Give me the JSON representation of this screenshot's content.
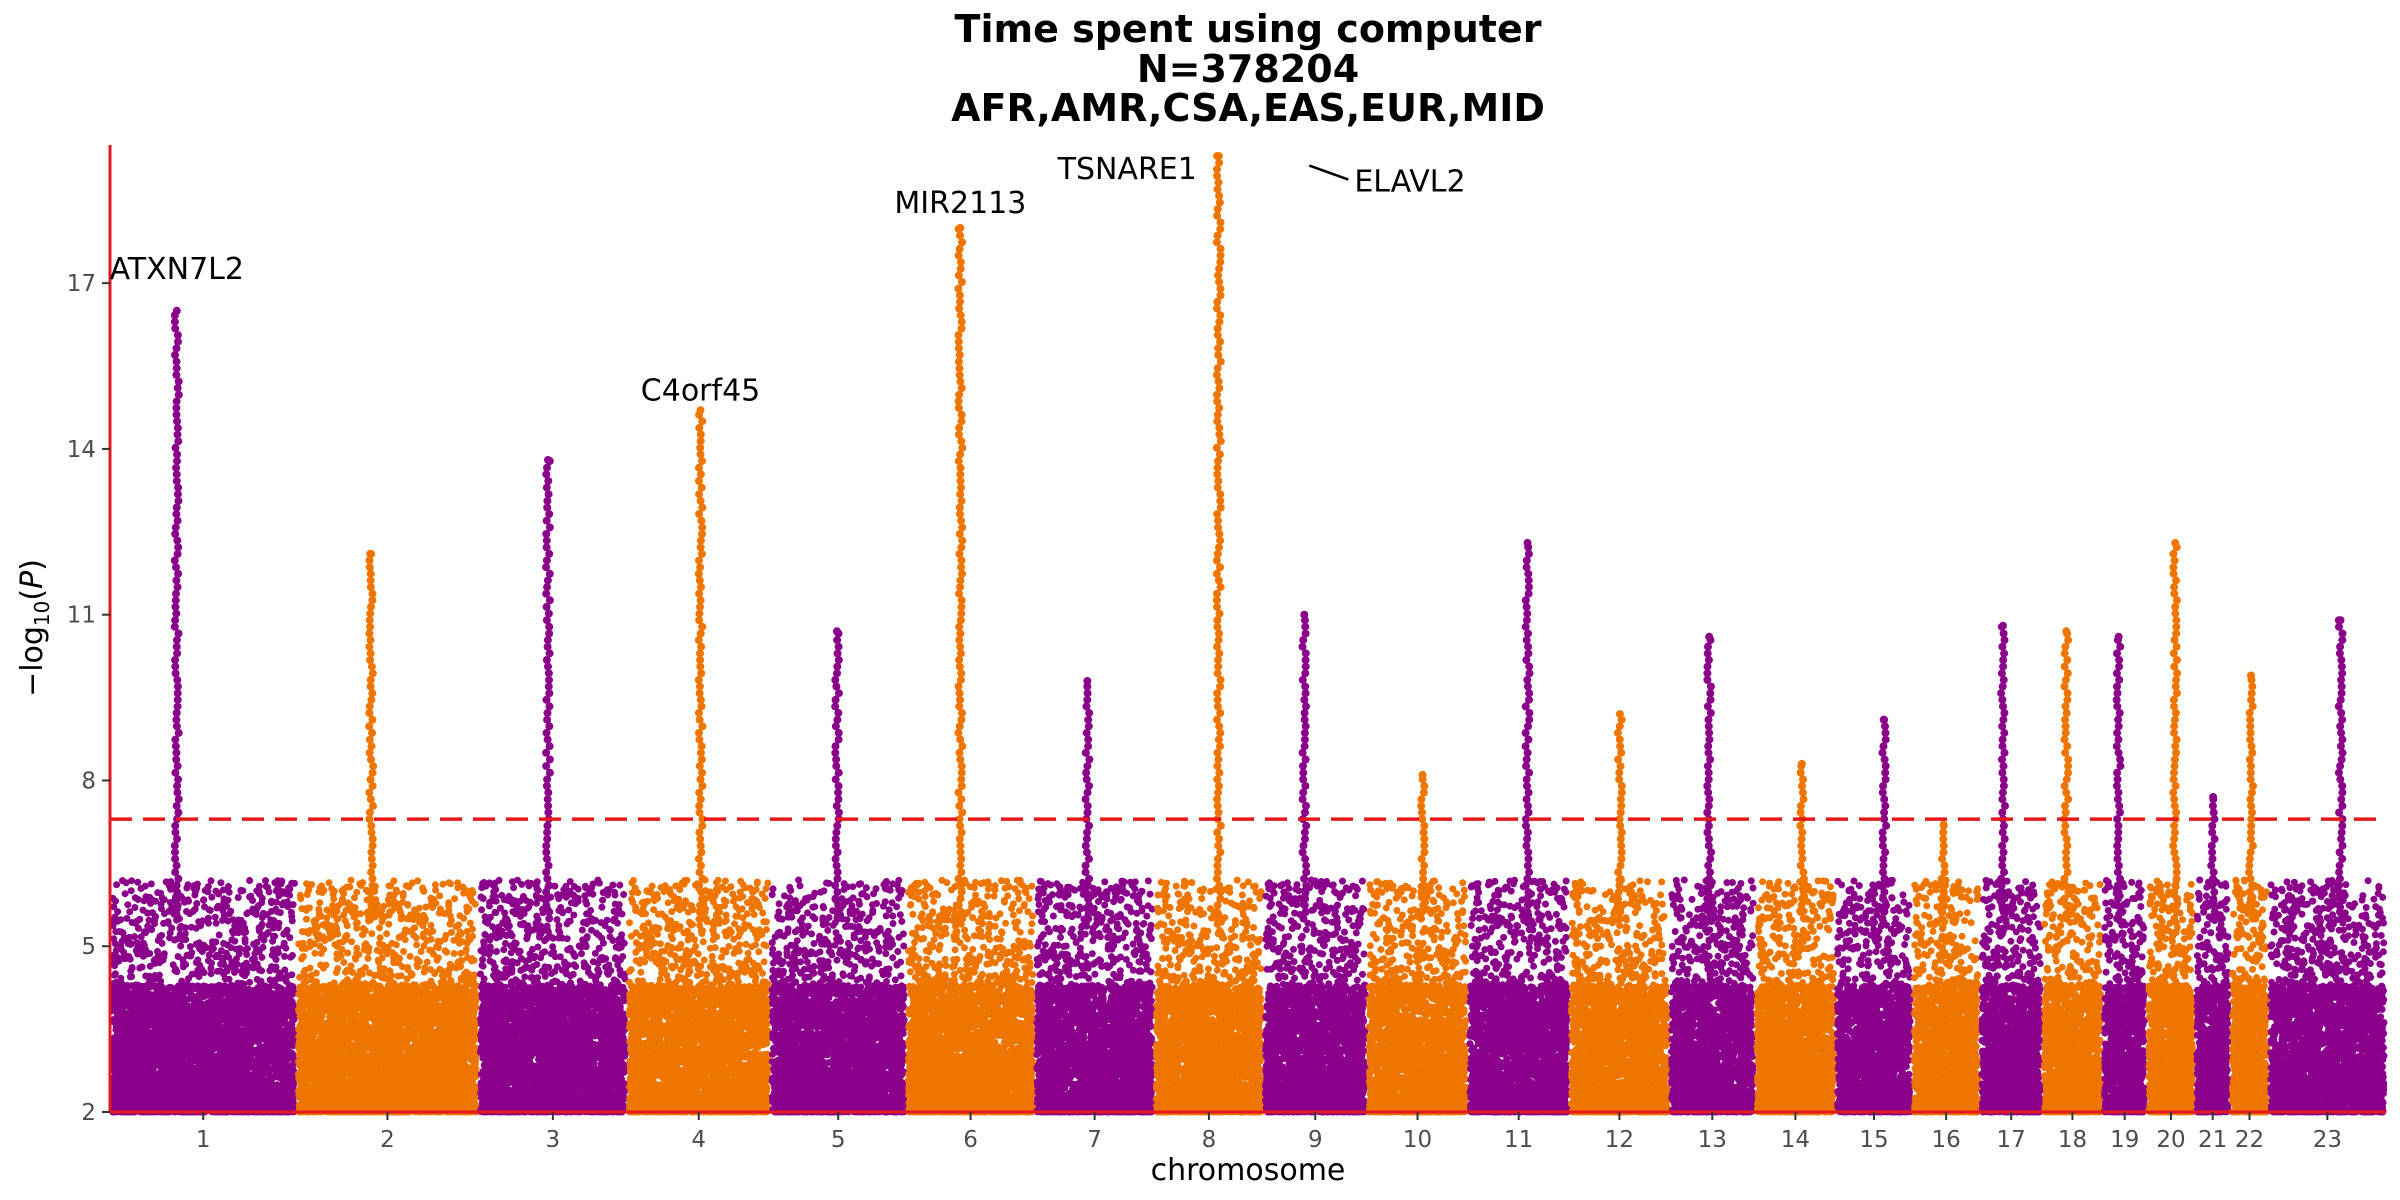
{
  "title_lines": [
    "Time spent using computer",
    "N=378204",
    "AFR,AMR,CSA,EAS,EUR,MID"
  ],
  "colors": {
    "odd": "#8b008b",
    "even": "#ee7600",
    "axis": "#e31a1c",
    "threshold": "#e31a1c",
    "text": "#000000",
    "tick_text": "#4d4d4d"
  },
  "chart_data": {
    "type": "scatter",
    "subtype": "manhattan",
    "title": "Time spent using computer\nN=378204\nAFR,AMR,CSA,EAS,EUR,MID",
    "xlabel": "chromosome",
    "ylabel": "−log10(P)",
    "ylim": [
      2,
      19.5
    ],
    "y_ticks": [
      2,
      5,
      8,
      11,
      14,
      17
    ],
    "genome_wide_threshold": 7.3,
    "chromosomes": [
      {
        "label": "1",
        "size": 248,
        "peak": 16.5
      },
      {
        "label": "2",
        "size": 242,
        "peak": 12.1
      },
      {
        "label": "3",
        "size": 198,
        "peak": 13.8
      },
      {
        "label": "4",
        "size": 190,
        "peak": 14.7
      },
      {
        "label": "5",
        "size": 181,
        "peak": 10.7
      },
      {
        "label": "6",
        "size": 171,
        "peak": 18.0
      },
      {
        "label": "7",
        "size": 159,
        "peak": 9.8
      },
      {
        "label": "8",
        "size": 145,
        "peak": 19.3
      },
      {
        "label": "9",
        "size": 138,
        "peak": 11.0
      },
      {
        "label": "10",
        "size": 134,
        "peak": 8.1
      },
      {
        "label": "11",
        "size": 135,
        "peak": 12.3
      },
      {
        "label": "12",
        "size": 133,
        "peak": 9.2
      },
      {
        "label": "13",
        "size": 114,
        "peak": 10.6
      },
      {
        "label": "14",
        "size": 107,
        "peak": 8.3
      },
      {
        "label": "15",
        "size": 102,
        "peak": 9.1
      },
      {
        "label": "16",
        "size": 90,
        "peak": 7.2
      },
      {
        "label": "17",
        "size": 83,
        "peak": 10.8
      },
      {
        "label": "18",
        "size": 80,
        "peak": 10.7
      },
      {
        "label": "19",
        "size": 59,
        "peak": 10.6
      },
      {
        "label": "20",
        "size": 64,
        "peak": 12.3
      },
      {
        "label": "21",
        "size": 47,
        "peak": 7.7
      },
      {
        "label": "22",
        "size": 51,
        "peak": 9.9
      },
      {
        "label": "23",
        "size": 156,
        "peak": 10.9
      }
    ],
    "annotations": [
      {
        "text": "ATXN7L2",
        "chrom": "1",
        "y": 17.0
      },
      {
        "text": "C4orf45",
        "chrom": "4",
        "y": 14.8
      },
      {
        "text": "MIR2113",
        "chrom": "6",
        "y": 18.2
      },
      {
        "text": "TSNARE1",
        "chrom": "8",
        "y": 19.3
      },
      {
        "text": "ELAVL2",
        "chrom": "9",
        "y": 19.2
      }
    ]
  }
}
